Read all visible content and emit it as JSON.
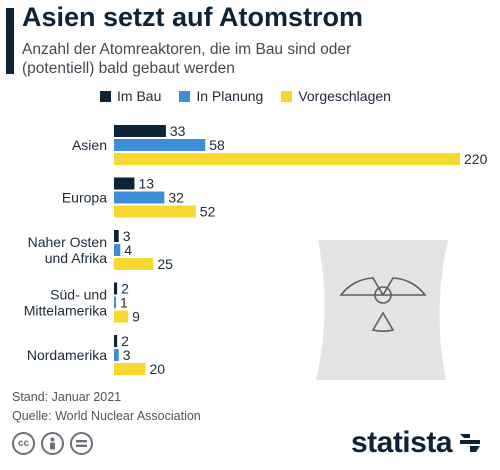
{
  "header": {
    "title": "Asien setzt auf Atomstrom",
    "subtitle": "Anzahl der Atomreaktoren, die im Bau sind oder (potentiell) bald gebaut werden"
  },
  "colors": {
    "im_bau": "#0f2337",
    "in_planung": "#3d8ed6",
    "vorgeschlagen": "#f7d730",
    "illustration": "#e4e4e4",
    "illustration_stroke": "#5a5f66"
  },
  "legend": {
    "im_bau": "Im Bau",
    "in_planung": "In Planung",
    "vorgeschlagen": "Vorgeschlagen"
  },
  "chart_data": {
    "type": "bar",
    "orientation": "horizontal",
    "categories": [
      "Asien",
      "Europa",
      "Naher Osten und Afrika",
      "Süd- und Mittelamerika",
      "Nordamerika"
    ],
    "category_lines": [
      [
        "Asien"
      ],
      [
        "Europa"
      ],
      [
        "Naher Osten",
        "und Afrika"
      ],
      [
        "Süd- und",
        "Mittelamerika"
      ],
      [
        "Nordamerika"
      ]
    ],
    "series": [
      {
        "name": "Im Bau",
        "values": [
          33,
          13,
          3,
          2,
          2
        ]
      },
      {
        "name": "In Planung",
        "values": [
          58,
          32,
          4,
          1,
          3
        ]
      },
      {
        "name": "Vorgeschlagen",
        "values": [
          220,
          52,
          25,
          9,
          20
        ]
      }
    ],
    "xlim": [
      0,
      220
    ],
    "grid": false,
    "legend_position": "top"
  },
  "footer": {
    "stand": "Stand: Januar 2021",
    "quelle": "Quelle: World Nuclear Association"
  },
  "license_icons": [
    "cc-icon",
    "person-icon",
    "equals-icon"
  ],
  "brand": "statista"
}
